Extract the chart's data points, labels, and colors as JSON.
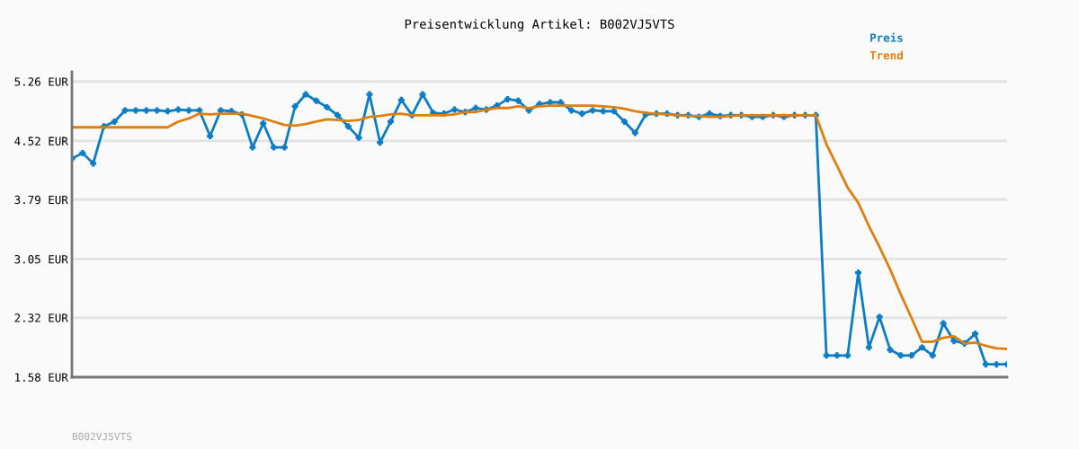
{
  "chart_data": {
    "type": "line",
    "title": "Preisentwicklung Artikel: B002VJ5VTS",
    "categories": [
      null,
      null,
      null,
      null,
      null,
      null,
      null,
      null,
      null,
      null,
      null,
      null,
      null,
      null,
      null,
      null,
      null,
      null,
      null,
      null,
      null,
      null,
      null,
      null,
      null,
      null,
      null,
      null,
      null,
      null,
      null,
      null,
      null,
      null,
      null,
      null,
      null,
      null,
      null,
      null,
      null,
      null,
      null,
      null,
      null,
      null,
      null,
      null,
      null,
      null,
      null,
      null,
      null,
      null,
      null,
      null,
      null,
      null,
      null,
      null,
      null,
      null,
      null,
      null,
      null,
      null,
      null,
      null,
      null,
      null,
      null,
      null,
      null,
      null,
      null,
      null,
      null,
      null,
      null,
      null,
      null,
      null,
      null,
      null,
      null,
      null,
      null,
      null,
      null
    ],
    "series": [
      {
        "name": "Preis",
        "color": "#0a7dc6",
        "marker": "cross",
        "values": [
          4.3,
          4.37,
          4.24,
          4.7,
          4.76,
          4.9,
          4.9,
          4.9,
          4.9,
          4.89,
          4.91,
          4.9,
          4.9,
          4.58,
          4.9,
          4.89,
          4.85,
          4.44,
          4.74,
          4.44,
          4.44,
          4.95,
          5.1,
          5.02,
          4.94,
          4.84,
          4.7,
          4.56,
          5.1,
          4.5,
          4.76,
          5.03,
          4.84,
          5.1,
          4.87,
          4.86,
          4.91,
          4.88,
          4.93,
          4.91,
          4.96,
          5.04,
          5.02,
          4.9,
          4.98,
          5.0,
          5.0,
          4.9,
          4.86,
          4.9,
          4.89,
          4.89,
          4.76,
          4.62,
          4.85,
          4.86,
          4.86,
          4.84,
          4.84,
          4.82,
          4.86,
          4.83,
          4.84,
          4.84,
          4.82,
          4.82,
          4.84,
          4.82,
          4.84,
          4.84,
          4.84,
          1.85,
          1.85,
          1.85,
          2.88,
          1.95,
          2.33,
          1.92,
          1.85,
          1.85,
          1.95,
          1.85,
          2.25,
          2.03,
          2.0,
          2.12,
          1.74,
          1.74,
          1.74
        ]
      },
      {
        "name": "Trend",
        "color": "#e07f0e",
        "marker": "none",
        "values": [
          4.69,
          4.69,
          4.69,
          4.69,
          4.69,
          4.69,
          4.69,
          4.69,
          4.69,
          4.69,
          4.76,
          4.8,
          4.86,
          4.85,
          4.86,
          4.86,
          4.86,
          4.83,
          4.8,
          4.76,
          4.72,
          4.71,
          4.73,
          4.76,
          4.79,
          4.78,
          4.77,
          4.78,
          4.82,
          4.83,
          4.85,
          4.86,
          4.84,
          4.84,
          4.84,
          4.84,
          4.85,
          4.88,
          4.88,
          4.91,
          4.93,
          4.93,
          4.95,
          4.93,
          4.95,
          4.96,
          4.96,
          4.96,
          4.96,
          4.96,
          4.95,
          4.94,
          4.92,
          4.89,
          4.87,
          4.86,
          4.85,
          4.84,
          4.83,
          4.83,
          4.82,
          4.82,
          4.83,
          4.84,
          4.84,
          4.84,
          4.84,
          4.84,
          4.84,
          4.84,
          4.84,
          4.48,
          4.21,
          3.94,
          3.75,
          3.46,
          3.2,
          2.92,
          2.61,
          2.32,
          2.02,
          2.02,
          2.07,
          2.09,
          2.0,
          2.01,
          1.97,
          1.94,
          1.93
        ]
      }
    ],
    "ylim": [
      1.58,
      5.38
    ],
    "yticks": [
      {
        "value": 1.58,
        "label": "1.58 EUR"
      },
      {
        "value": 2.32,
        "label": "2.32 EUR"
      },
      {
        "value": 3.05,
        "label": "3.05 EUR"
      },
      {
        "value": 3.79,
        "label": "3.79 EUR"
      },
      {
        "value": 4.52,
        "label": "4.52 EUR"
      },
      {
        "value": 5.26,
        "label": "5.26 EUR"
      }
    ],
    "grid": "y",
    "legend": "top right",
    "line_style": "solid",
    "annotations": [
      "B002VJ5VTS"
    ]
  }
}
